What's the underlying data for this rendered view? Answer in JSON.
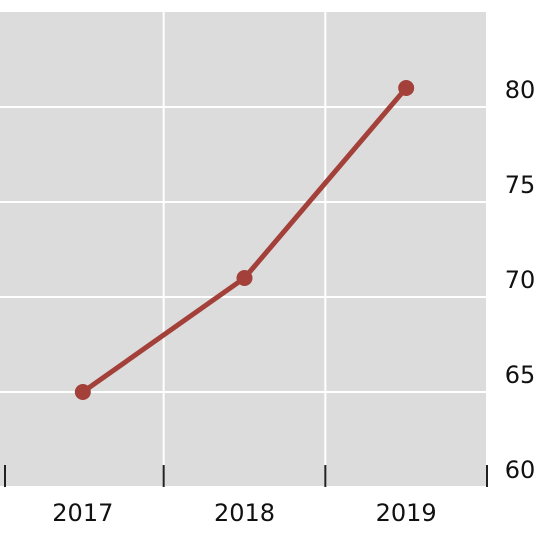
{
  "chart_data": {
    "type": "line",
    "categories": [
      "2017",
      "2018",
      "2019"
    ],
    "series": [
      {
        "color": "#a3403a",
        "values": [
          65.0,
          71.0,
          81.0
        ]
      }
    ],
    "ylim": [
      60,
      85
    ],
    "yticks": [
      60,
      65,
      70,
      75,
      80
    ],
    "grid": true
  }
}
